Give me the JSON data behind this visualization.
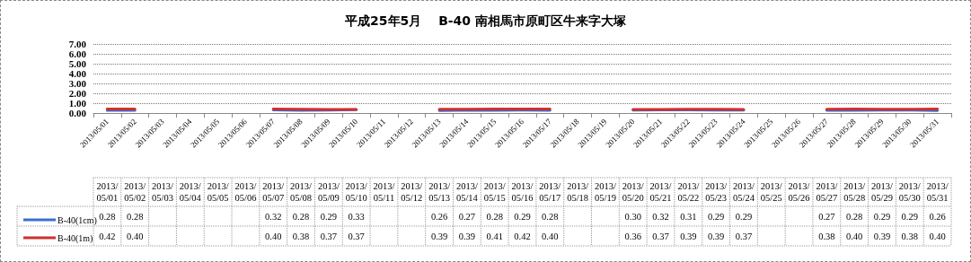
{
  "chart_data": {
    "type": "line",
    "title": "平成25年5月　 B-40 南相馬市原町区牛来字大塚",
    "categories": [
      "2013/05/01",
      "2013/05/02",
      "2013/05/03",
      "2013/05/04",
      "2013/05/05",
      "2013/05/06",
      "2013/05/07",
      "2013/05/08",
      "2013/05/09",
      "2013/05/10",
      "2013/05/11",
      "2013/05/12",
      "2013/05/13",
      "2013/05/14",
      "2013/05/15",
      "2013/05/16",
      "2013/05/17",
      "2013/05/18",
      "2013/05/19",
      "2013/05/20",
      "2013/05/21",
      "2013/05/22",
      "2013/05/23",
      "2013/05/24",
      "2013/05/25",
      "2013/05/26",
      "2013/05/27",
      "2013/05/28",
      "2013/05/29",
      "2013/05/30",
      "2013/05/31"
    ],
    "series": [
      {
        "name": "B-40(1cm)",
        "color": "#3a6fd0",
        "values": [
          0.28,
          0.28,
          null,
          null,
          null,
          null,
          0.32,
          0.28,
          0.29,
          0.33,
          null,
          null,
          0.26,
          0.27,
          0.28,
          0.29,
          0.28,
          null,
          null,
          0.3,
          0.32,
          0.31,
          0.29,
          0.29,
          null,
          null,
          0.27,
          0.28,
          0.29,
          0.29,
          0.26
        ],
        "value_labels": [
          "0.28",
          "0.28",
          null,
          null,
          null,
          null,
          "0.32",
          "0.28",
          "0.29",
          "0.33",
          null,
          null,
          "0.26",
          "0.27",
          "0.28",
          "0.29",
          "0.28",
          null,
          null,
          "0.30",
          "0.32",
          "0.31",
          "0.29",
          "0.29",
          null,
          null,
          "0.27",
          "0.28",
          "0.29",
          "0.29",
          "0.26"
        ]
      },
      {
        "name": "B-40(1m)",
        "color": "#d03030",
        "values": [
          0.42,
          0.4,
          null,
          null,
          null,
          null,
          0.4,
          0.38,
          0.37,
          0.37,
          null,
          null,
          0.39,
          0.39,
          0.41,
          0.42,
          0.4,
          null,
          null,
          0.36,
          0.37,
          0.39,
          0.39,
          0.37,
          null,
          null,
          0.38,
          0.4,
          0.39,
          0.38,
          0.4
        ],
        "value_labels": [
          "0.42",
          "0.40",
          null,
          null,
          null,
          null,
          "0.40",
          "0.38",
          "0.37",
          "0.37",
          null,
          null,
          "0.39",
          "0.39",
          "0.41",
          "0.42",
          "0.40",
          null,
          null,
          "0.36",
          "0.37",
          "0.39",
          "0.39",
          "0.37",
          null,
          null,
          "0.38",
          "0.40",
          "0.39",
          "0.38",
          "0.40"
        ]
      }
    ],
    "ylim": [
      0,
      7
    ],
    "yticks": [
      {
        "value": 0,
        "label": "0.00"
      },
      {
        "value": 1,
        "label": "1.00"
      },
      {
        "value": 2,
        "label": "2.00"
      },
      {
        "value": 3,
        "label": "3.00"
      },
      {
        "value": 4,
        "label": "4.00"
      },
      {
        "value": 5,
        "label": "5.00"
      },
      {
        "value": 6,
        "label": "6.00"
      },
      {
        "value": 7,
        "label": "7.00"
      }
    ],
    "grid": "y",
    "legend": "bottom left",
    "line_style": "solid"
  }
}
